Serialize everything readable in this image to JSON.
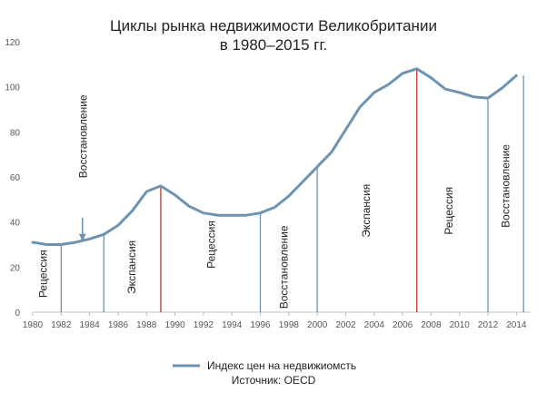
{
  "chart_data": {
    "type": "line",
    "title": [
      "Циклы рынка недвижимости Великобритании",
      "в 1980–2015 гг."
    ],
    "x": [
      1980,
      1981,
      1982,
      1983,
      1984,
      1985,
      1986,
      1987,
      1988,
      1989,
      1990,
      1991,
      1992,
      1993,
      1994,
      1995,
      1996,
      1997,
      1998,
      1999,
      2000,
      2001,
      2002,
      2003,
      2004,
      2005,
      2006,
      2007,
      2008,
      2009,
      2010,
      2011,
      2012,
      2013,
      2014
    ],
    "series": [
      {
        "name": "Индекс цен на недвижиомсть",
        "color": "#6e93b0",
        "values": [
          31,
          30,
          30,
          31,
          32.5,
          34.5,
          38.5,
          45,
          53.5,
          56,
          52,
          47,
          44,
          43,
          43,
          43,
          44,
          46.5,
          51.5,
          58,
          64.5,
          71,
          81,
          91,
          97.5,
          101,
          106,
          108,
          104,
          99,
          97.5,
          95.5,
          95,
          99.5,
          105
        ]
      }
    ],
    "ylim": [
      0,
      120
    ],
    "xlim": [
      1980,
      2015
    ],
    "yticks": [
      "0",
      "20",
      "40",
      "60",
      "80",
      "100",
      "120"
    ],
    "xticks": [
      "1980",
      "1982",
      "1984",
      "1986",
      "1988",
      "1990",
      "1992",
      "1994",
      "1996",
      "1998",
      "2000",
      "2002",
      "2004",
      "2006",
      "2008",
      "2010",
      "2012",
      "2014"
    ],
    "cycle_markers": [
      {
        "year": 1982,
        "color": "#6e93b0"
      },
      {
        "year": 1985,
        "color": "#6e93b0"
      },
      {
        "year": 1989,
        "color": "#c0392b"
      },
      {
        "year": 1996,
        "color": "#6e93b0"
      },
      {
        "year": 2000,
        "color": "#6e93b0"
      },
      {
        "year": 2007,
        "color": "#c0392b"
      },
      {
        "year": 2012,
        "color": "#6e93b0"
      },
      {
        "year": 2014.5,
        "color": "#6e93b0"
      }
    ],
    "phases": [
      {
        "label": "Рецессия",
        "year": 1980.8,
        "y": 17
      },
      {
        "label": "Восстановление",
        "year": 1983.6,
        "y": 78
      },
      {
        "label": "Экспансия",
        "year": 1987,
        "y": 20
      },
      {
        "label": "Рецессия",
        "year": 1992.6,
        "y": 30
      },
      {
        "label": "Восстановление",
        "year": 1997.7,
        "y": 20
      },
      {
        "label": "Экспансия",
        "year": 2003.5,
        "y": 45
      },
      {
        "label": "Рецессия",
        "year": 2009.3,
        "y": 45
      },
      {
        "label": "Восстановление",
        "year": 2013.3,
        "y": 56
      }
    ],
    "arrow_year": 1983.5,
    "arrow_from": 42,
    "arrow_to": 31.5,
    "legend_position": "bottom-center",
    "source": "Источник: OECD",
    "grid": false
  }
}
